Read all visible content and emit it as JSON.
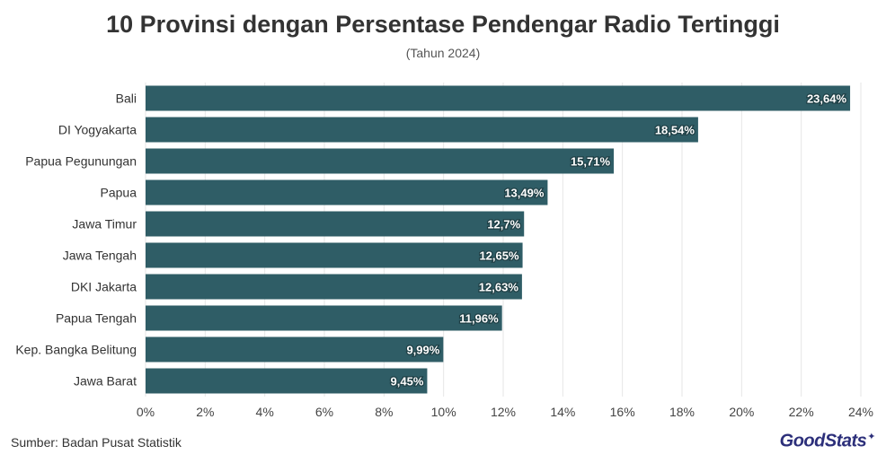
{
  "header": {
    "title": "10 Provinsi dengan Persentase Pendengar Radio Tertinggi",
    "subtitle": "(Tahun 2024)"
  },
  "footer": {
    "source": "Sumber: Badan Pusat Statistik",
    "brand": "GoodStats"
  },
  "colors": {
    "bar": "#2f5d66",
    "label": "#ffffff",
    "grid": "#e6e6e6"
  },
  "chart_data": {
    "type": "bar",
    "orientation": "horizontal",
    "title": "10 Provinsi dengan Persentase Pendengar Radio Tertinggi",
    "subtitle": "(Tahun 2024)",
    "categories": [
      "Bali",
      "DI Yogyakarta",
      "Papua Pegunungan",
      "Papua",
      "Jawa Timur",
      "Jawa Tengah",
      "DKI Jakarta",
      "Papua Tengah",
      "Kep. Bangka Belitung",
      "Jawa Barat"
    ],
    "values": [
      23.64,
      18.54,
      15.71,
      13.49,
      12.7,
      12.65,
      12.63,
      11.96,
      9.99,
      9.45
    ],
    "value_labels": [
      "23,64%",
      "18,54%",
      "15,71%",
      "13,49%",
      "12,7%",
      "12,65%",
      "12,63%",
      "11,96%",
      "9,99%",
      "9,45%"
    ],
    "xlim": [
      0,
      24
    ],
    "xticks": [
      0,
      2,
      4,
      6,
      8,
      10,
      12,
      14,
      16,
      18,
      20,
      22,
      24
    ],
    "xtick_labels": [
      "0%",
      "2%",
      "4%",
      "6%",
      "8%",
      "10%",
      "12%",
      "14%",
      "16%",
      "18%",
      "20%",
      "22%",
      "24%"
    ],
    "grid": true,
    "legend": "none"
  }
}
